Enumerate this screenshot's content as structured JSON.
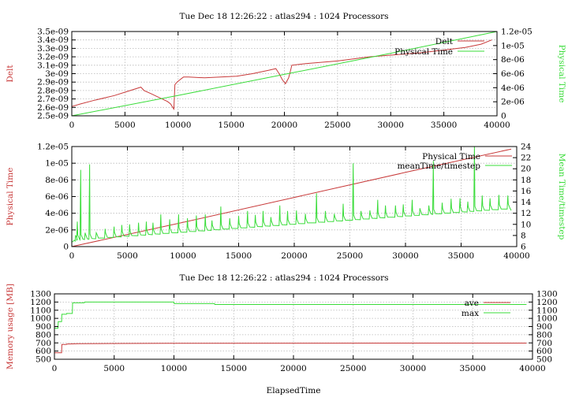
{
  "colors": {
    "red": "#c83a3a",
    "green": "#3adc3a",
    "grid": "#b8b8b8",
    "axis": "#000000"
  },
  "chart_data": [
    {
      "type": "line",
      "title": "Tue Dec 18 12:26:22 : atlas294 : 1024 Processors",
      "ylabel_left": "Delt",
      "ylabel_right": "Physical Time",
      "xlim": [
        0,
        40000
      ],
      "ylim_left": [
        2.5e-09,
        3.5e-09
      ],
      "ylim_right": [
        0,
        1.2e-05
      ],
      "xticks": [
        "0",
        "5000",
        "10000",
        "15000",
        "20000",
        "25000",
        "30000",
        "35000",
        "40000"
      ],
      "yticks_left": [
        "2.5e-09",
        "2.6e-09",
        "2.7e-09",
        "2.8e-09",
        "2.9e-09",
        "3e-09",
        "3.1e-09",
        "3.2e-09",
        "3.3e-09",
        "3.4e-09",
        "3.5e-09"
      ],
      "yticks_right": [
        "0",
        "2e-06",
        "4e-06",
        "6e-06",
        "8e-06",
        "1e-05",
        "1.2e-05"
      ],
      "legend_position": "top-right",
      "series": [
        {
          "name": "Delt",
          "axis": "left",
          "color": "red",
          "x": [
            0,
            800,
            2000,
            4000,
            5500,
            6500,
            6800,
            7500,
            8000,
            8500,
            9000,
            9300,
            9500,
            9600,
            9700,
            9900,
            10200,
            10500,
            11000,
            12500,
            14000,
            15500,
            17000,
            18500,
            19200,
            19500,
            19800,
            20100,
            20400,
            20600,
            20700,
            22000,
            25000,
            28000,
            30000,
            33000,
            35000,
            37000,
            38500,
            39500
          ],
          "y": [
            2.61e-09,
            2.64e-09,
            2.68e-09,
            2.74e-09,
            2.8e-09,
            2.84e-09,
            2.8e-09,
            2.76e-09,
            2.73e-09,
            2.7e-09,
            2.67e-09,
            2.64e-09,
            2.6e-09,
            2.58e-09,
            2.87e-09,
            2.9e-09,
            2.93e-09,
            2.96e-09,
            2.96e-09,
            2.95e-09,
            2.96e-09,
            2.97e-09,
            3e-09,
            3.04e-09,
            3.06e-09,
            3e-09,
            2.93e-09,
            2.88e-09,
            2.95e-09,
            3.05e-09,
            3.1e-09,
            3.12e-09,
            3.15e-09,
            3.2e-09,
            3.22e-09,
            3.25e-09,
            3.28e-09,
            3.31e-09,
            3.35e-09,
            3.4e-09
          ]
        },
        {
          "name": "Physical Time",
          "axis": "right",
          "color": "green",
          "x": [
            0,
            10000,
            20000,
            30000,
            40000
          ],
          "y": [
            0,
            2.9e-06,
            5.9e-06,
            8.9e-06,
            1.2e-05
          ]
        }
      ]
    },
    {
      "type": "line",
      "title": "",
      "ylabel_left": "Physical Time",
      "ylabel_right": "Mean Time/timestep",
      "xlim": [
        0,
        40000
      ],
      "ylim_left": [
        0,
        1.2e-05
      ],
      "ylim_right": [
        6,
        24
      ],
      "xticks": [
        "0",
        "5000",
        "10000",
        "15000",
        "20000",
        "25000",
        "30000",
        "35000",
        "40000"
      ],
      "yticks_left": [
        "0",
        "2e-06",
        "4e-06",
        "6e-06",
        "8e-06",
        "1e-05",
        "1.2e-05"
      ],
      "yticks_right": [
        "6",
        "8",
        "10",
        "12",
        "14",
        "16",
        "18",
        "20",
        "22",
        "24"
      ],
      "legend_position": "top-right",
      "series": [
        {
          "name": "Physical Time",
          "axis": "left",
          "color": "red",
          "x": [
            0,
            10000,
            20000,
            30000,
            39500
          ],
          "y": [
            0,
            2.9e-06,
            5.9e-06,
            8.9e-06,
            1.17e-05
          ]
        },
        {
          "name": "meanTime/timestep",
          "axis": "right",
          "color": "green",
          "x": [
            0,
            39500
          ],
          "y": [
            6.8,
            12.5
          ],
          "spikes": [
            [
              300,
              7.0
            ],
            [
              500,
              10.5
            ],
            [
              800,
              19.8
            ],
            [
              1200,
              8.5
            ],
            [
              1600,
              20.8
            ],
            [
              2200,
              8.5
            ],
            [
              3000,
              9.2
            ],
            [
              3800,
              9.6
            ],
            [
              4500,
              9.9
            ],
            [
              5200,
              10.0
            ],
            [
              6000,
              10.3
            ],
            [
              6700,
              10.5
            ],
            [
              7300,
              10.3
            ],
            [
              8000,
              11.8
            ],
            [
              8800,
              10.9
            ],
            [
              9600,
              11.8
            ],
            [
              10400,
              11.1
            ],
            [
              11200,
              11.6
            ],
            [
              12000,
              11.8
            ],
            [
              12600,
              10.7
            ],
            [
              13400,
              13.2
            ],
            [
              14200,
              11.1
            ],
            [
              15000,
              11.5
            ],
            [
              15800,
              12.4
            ],
            [
              16500,
              11.7
            ],
            [
              17200,
              12.4
            ],
            [
              17900,
              11.3
            ],
            [
              18700,
              13.4
            ],
            [
              19400,
              12.4
            ],
            [
              20200,
              12.5
            ],
            [
              21000,
              11.9
            ],
            [
              22000,
              15.6
            ],
            [
              22800,
              12.4
            ],
            [
              23600,
              11.9
            ],
            [
              24400,
              13.7
            ],
            [
              25300,
              21.0
            ],
            [
              26000,
              12.4
            ],
            [
              26800,
              12.5
            ],
            [
              27500,
              14.4
            ],
            [
              28200,
              13.4
            ],
            [
              29100,
              13.4
            ],
            [
              29800,
              13.6
            ],
            [
              30600,
              14.4
            ],
            [
              31300,
              12.9
            ],
            [
              32100,
              13.4
            ],
            [
              32500,
              21.4
            ],
            [
              33300,
              13.9
            ],
            [
              34100,
              14.6
            ],
            [
              34900,
              14.7
            ],
            [
              35600,
              14.1
            ],
            [
              36200,
              24.0
            ],
            [
              36900,
              15.2
            ],
            [
              37600,
              14.7
            ],
            [
              38400,
              15.3
            ],
            [
              39200,
              15.2
            ]
          ]
        }
      ]
    },
    {
      "type": "line",
      "title": "Tue Dec 18 12:26:22 : atlas294 : 1024 Processors",
      "ylabel_left": "Memory usage [MB]",
      "ylabel_right": "",
      "xlabel": "ElapsedTime",
      "xlim": [
        0,
        40000
      ],
      "ylim_left": [
        500,
        1300
      ],
      "ylim_right": [
        500,
        1300
      ],
      "xticks": [
        "0",
        "5000",
        "10000",
        "15000",
        "20000",
        "25000",
        "30000",
        "35000",
        "40000"
      ],
      "yticks_left": [
        "500",
        "600",
        "700",
        "800",
        "900",
        "1000",
        "1100",
        "1200",
        "1300"
      ],
      "yticks_right": [
        "500",
        "600",
        "700",
        "800",
        "900",
        "1000",
        "1100",
        "1200",
        "1300"
      ],
      "legend_position": "top-right",
      "series": [
        {
          "name": "ave",
          "axis": "left",
          "color": "red",
          "x": [
            0,
            600,
            620,
            1000,
            1020,
            1500,
            2000,
            5000,
            10000,
            20000,
            30000,
            39500
          ],
          "y": [
            580,
            580,
            680,
            680,
            685,
            688,
            690,
            693,
            695,
            697,
            698,
            698
          ]
        },
        {
          "name": "max",
          "axis": "left",
          "color": "green",
          "x": [
            0,
            300,
            320,
            600,
            620,
            1000,
            1020,
            1500,
            1520,
            2500,
            2520,
            10000,
            10020,
            13400,
            13420,
            25000,
            39500
          ],
          "y": [
            880,
            880,
            960,
            960,
            1050,
            1050,
            1060,
            1060,
            1190,
            1190,
            1200,
            1200,
            1180,
            1180,
            1170,
            1170,
            1170
          ]
        }
      ]
    }
  ]
}
